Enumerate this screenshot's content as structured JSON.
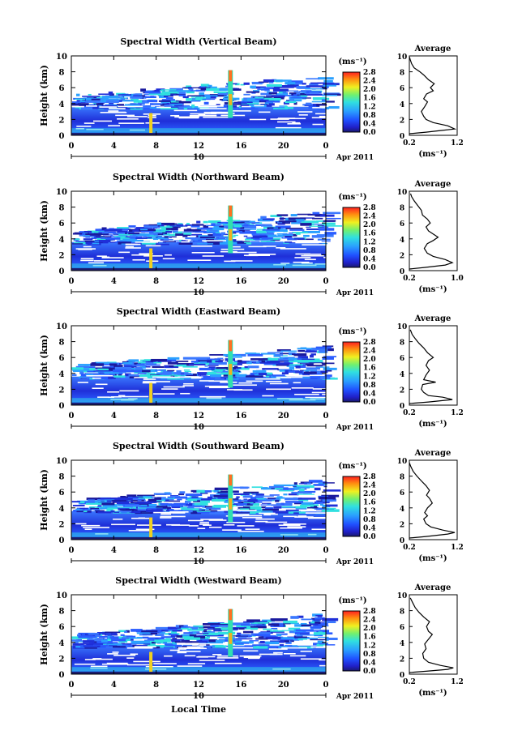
{
  "figure": {
    "x_axis_label": "Local Time",
    "date_label": "Apr 2011",
    "day_label": "10",
    "colorbar_unit": "(ms⁻¹)",
    "avg_unit": "(ms⁻¹)",
    "avg_title": "Average",
    "y_axis_label": "Height (km)"
  },
  "chart_data": [
    {
      "type": "heatmap",
      "title": "Spectral Width (Vertical Beam)",
      "ylabel": "Height (km)",
      "xlabel": "",
      "x_ticks": [
        "0",
        "4",
        "8",
        "12",
        "16",
        "20",
        "0"
      ],
      "y_ticks": [
        "0",
        "2",
        "4",
        "6",
        "8",
        "10"
      ],
      "xlim": [
        0,
        24
      ],
      "ylim": [
        0,
        10
      ],
      "colorbar": {
        "ticks": [
          "0.0",
          "0.4",
          "0.8",
          "1.2",
          "1.6",
          "2.0",
          "2.4",
          "2.8"
        ],
        "range": [
          0,
          2.8
        ]
      },
      "average": {
        "xlim": [
          0.2,
          1.2
        ],
        "x_ticks": [
          "0.2",
          "1.2"
        ],
        "profile": [
          [
            0.2,
            0.2
          ],
          [
            0.55,
            0.4
          ],
          [
            0.85,
            0.6
          ],
          [
            1.15,
            0.8
          ],
          [
            1.0,
            1.2
          ],
          [
            0.7,
            1.6
          ],
          [
            0.55,
            2.0
          ],
          [
            0.5,
            2.4
          ],
          [
            0.45,
            3.0
          ],
          [
            0.52,
            3.6
          ],
          [
            0.58,
            4.2
          ],
          [
            0.5,
            4.6
          ],
          [
            0.56,
            5.2
          ],
          [
            0.7,
            5.6
          ],
          [
            0.64,
            6.0
          ],
          [
            0.72,
            6.5
          ],
          [
            0.6,
            7.0
          ],
          [
            0.5,
            7.6
          ],
          [
            0.42,
            8.0
          ],
          [
            0.3,
            8.5
          ],
          [
            0.25,
            9.0
          ],
          [
            0.22,
            9.5
          ],
          [
            0.2,
            9.9
          ]
        ]
      }
    },
    {
      "type": "heatmap",
      "title": "Spectral Width (Northward Beam)",
      "ylabel": "Height (km)",
      "xlabel": "",
      "x_ticks": [
        "0",
        "4",
        "8",
        "12",
        "16",
        "20",
        "0"
      ],
      "y_ticks": [
        "0",
        "2",
        "4",
        "6",
        "8",
        "10"
      ],
      "xlim": [
        0,
        24
      ],
      "ylim": [
        0,
        10
      ],
      "colorbar": {
        "ticks": [
          "0.0",
          "0.4",
          "0.8",
          "1.2",
          "1.6",
          "2.0",
          "2.4",
          "2.8"
        ],
        "range": [
          0,
          2.8
        ]
      },
      "average": {
        "xlim": [
          0.2,
          1.0
        ],
        "x_ticks": [
          "0.2",
          "1.0"
        ],
        "profile": [
          [
            0.2,
            0.2
          ],
          [
            0.45,
            0.4
          ],
          [
            0.8,
            0.7
          ],
          [
            0.92,
            1.0
          ],
          [
            0.8,
            1.4
          ],
          [
            0.6,
            1.8
          ],
          [
            0.5,
            2.2
          ],
          [
            0.45,
            2.8
          ],
          [
            0.5,
            3.4
          ],
          [
            0.6,
            3.8
          ],
          [
            0.68,
            4.2
          ],
          [
            0.6,
            4.6
          ],
          [
            0.52,
            5.0
          ],
          [
            0.48,
            5.5
          ],
          [
            0.55,
            6.0
          ],
          [
            0.5,
            6.5
          ],
          [
            0.42,
            7.0
          ],
          [
            0.4,
            7.6
          ],
          [
            0.34,
            8.2
          ],
          [
            0.28,
            8.8
          ],
          [
            0.24,
            9.3
          ],
          [
            0.22,
            9.7
          ]
        ]
      }
    },
    {
      "type": "heatmap",
      "title": "Spectral Width (Eastward Beam)",
      "ylabel": "Height (km)",
      "xlabel": "",
      "x_ticks": [
        "0",
        "4",
        "8",
        "12",
        "16",
        "20",
        "0"
      ],
      "y_ticks": [
        "0",
        "2",
        "4",
        "6",
        "8",
        "10"
      ],
      "xlim": [
        0,
        24
      ],
      "ylim": [
        0,
        10
      ],
      "colorbar": {
        "ticks": [
          "0.0",
          "0.4",
          "0.8",
          "1.2",
          "1.6",
          "2.0",
          "2.4",
          "2.8"
        ],
        "range": [
          0,
          2.8
        ]
      },
      "average": {
        "xlim": [
          0.2,
          1.2
        ],
        "x_ticks": [
          "0.2",
          "1.2"
        ],
        "profile": [
          [
            0.2,
            0.2
          ],
          [
            0.6,
            0.4
          ],
          [
            1.1,
            0.7
          ],
          [
            0.9,
            1.0
          ],
          [
            0.6,
            1.2
          ],
          [
            0.5,
            1.6
          ],
          [
            0.45,
            2.0
          ],
          [
            0.48,
            2.6
          ],
          [
            0.75,
            2.9
          ],
          [
            0.5,
            3.2
          ],
          [
            0.55,
            3.8
          ],
          [
            0.62,
            4.4
          ],
          [
            0.55,
            5.0
          ],
          [
            0.6,
            5.6
          ],
          [
            0.7,
            6.0
          ],
          [
            0.58,
            6.6
          ],
          [
            0.5,
            7.2
          ],
          [
            0.4,
            7.8
          ],
          [
            0.32,
            8.4
          ],
          [
            0.26,
            8.9
          ],
          [
            0.22,
            9.5
          ]
        ]
      }
    },
    {
      "type": "heatmap",
      "title": "Spectral Width (Southward Beam)",
      "ylabel": "Height (km)",
      "xlabel": "",
      "x_ticks": [
        "0",
        "4",
        "8",
        "12",
        "16",
        "20",
        "0"
      ],
      "y_ticks": [
        "0",
        "2",
        "4",
        "6",
        "8",
        "10"
      ],
      "xlim": [
        0,
        24
      ],
      "ylim": [
        0,
        10
      ],
      "colorbar": {
        "ticks": [
          "0.0",
          "0.4",
          "0.8",
          "1.2",
          "1.6",
          "2.0",
          "2.4",
          "2.8"
        ],
        "range": [
          0,
          2.8
        ]
      },
      "average": {
        "xlim": [
          0.2,
          1.2
        ],
        "x_ticks": [
          "0.2",
          "1.2"
        ],
        "profile": [
          [
            0.2,
            0.2
          ],
          [
            0.55,
            0.4
          ],
          [
            1.0,
            0.7
          ],
          [
            1.15,
            0.9
          ],
          [
            0.9,
            1.2
          ],
          [
            0.65,
            1.6
          ],
          [
            0.55,
            2.0
          ],
          [
            0.5,
            2.6
          ],
          [
            0.58,
            3.0
          ],
          [
            0.52,
            3.4
          ],
          [
            0.58,
            4.0
          ],
          [
            0.68,
            4.6
          ],
          [
            0.62,
            5.2
          ],
          [
            0.56,
            5.6
          ],
          [
            0.62,
            6.2
          ],
          [
            0.55,
            6.8
          ],
          [
            0.45,
            7.4
          ],
          [
            0.36,
            8.0
          ],
          [
            0.28,
            8.6
          ],
          [
            0.23,
            9.2
          ],
          [
            0.2,
            9.7
          ]
        ]
      }
    },
    {
      "type": "heatmap",
      "title": "Spectral Width (Westward Beam)",
      "ylabel": "Height (km)",
      "xlabel": "Local Time",
      "x_ticks": [
        "0",
        "4",
        "8",
        "12",
        "16",
        "20",
        "0"
      ],
      "y_ticks": [
        "0",
        "2",
        "4",
        "6",
        "8",
        "10"
      ],
      "xlim": [
        0,
        24
      ],
      "ylim": [
        0,
        10
      ],
      "colorbar": {
        "ticks": [
          "0.0",
          "0.4",
          "0.8",
          "1.2",
          "1.6",
          "2.0",
          "2.4",
          "2.8"
        ],
        "range": [
          0,
          2.8
        ]
      },
      "average": {
        "xlim": [
          0.2,
          1.2
        ],
        "x_ticks": [
          "0.2",
          "1.2"
        ],
        "profile": [
          [
            0.2,
            0.2
          ],
          [
            0.6,
            0.4
          ],
          [
            1.0,
            0.6
          ],
          [
            1.12,
            0.8
          ],
          [
            0.85,
            1.1
          ],
          [
            0.6,
            1.5
          ],
          [
            0.5,
            2.0
          ],
          [
            0.48,
            2.6
          ],
          [
            0.55,
            3.2
          ],
          [
            0.52,
            3.8
          ],
          [
            0.6,
            4.4
          ],
          [
            0.68,
            5.0
          ],
          [
            0.6,
            5.4
          ],
          [
            0.56,
            6.0
          ],
          [
            0.62,
            6.6
          ],
          [
            0.5,
            7.2
          ],
          [
            0.4,
            7.8
          ],
          [
            0.32,
            8.4
          ],
          [
            0.27,
            9.0
          ],
          [
            0.22,
            9.6
          ]
        ]
      }
    }
  ]
}
